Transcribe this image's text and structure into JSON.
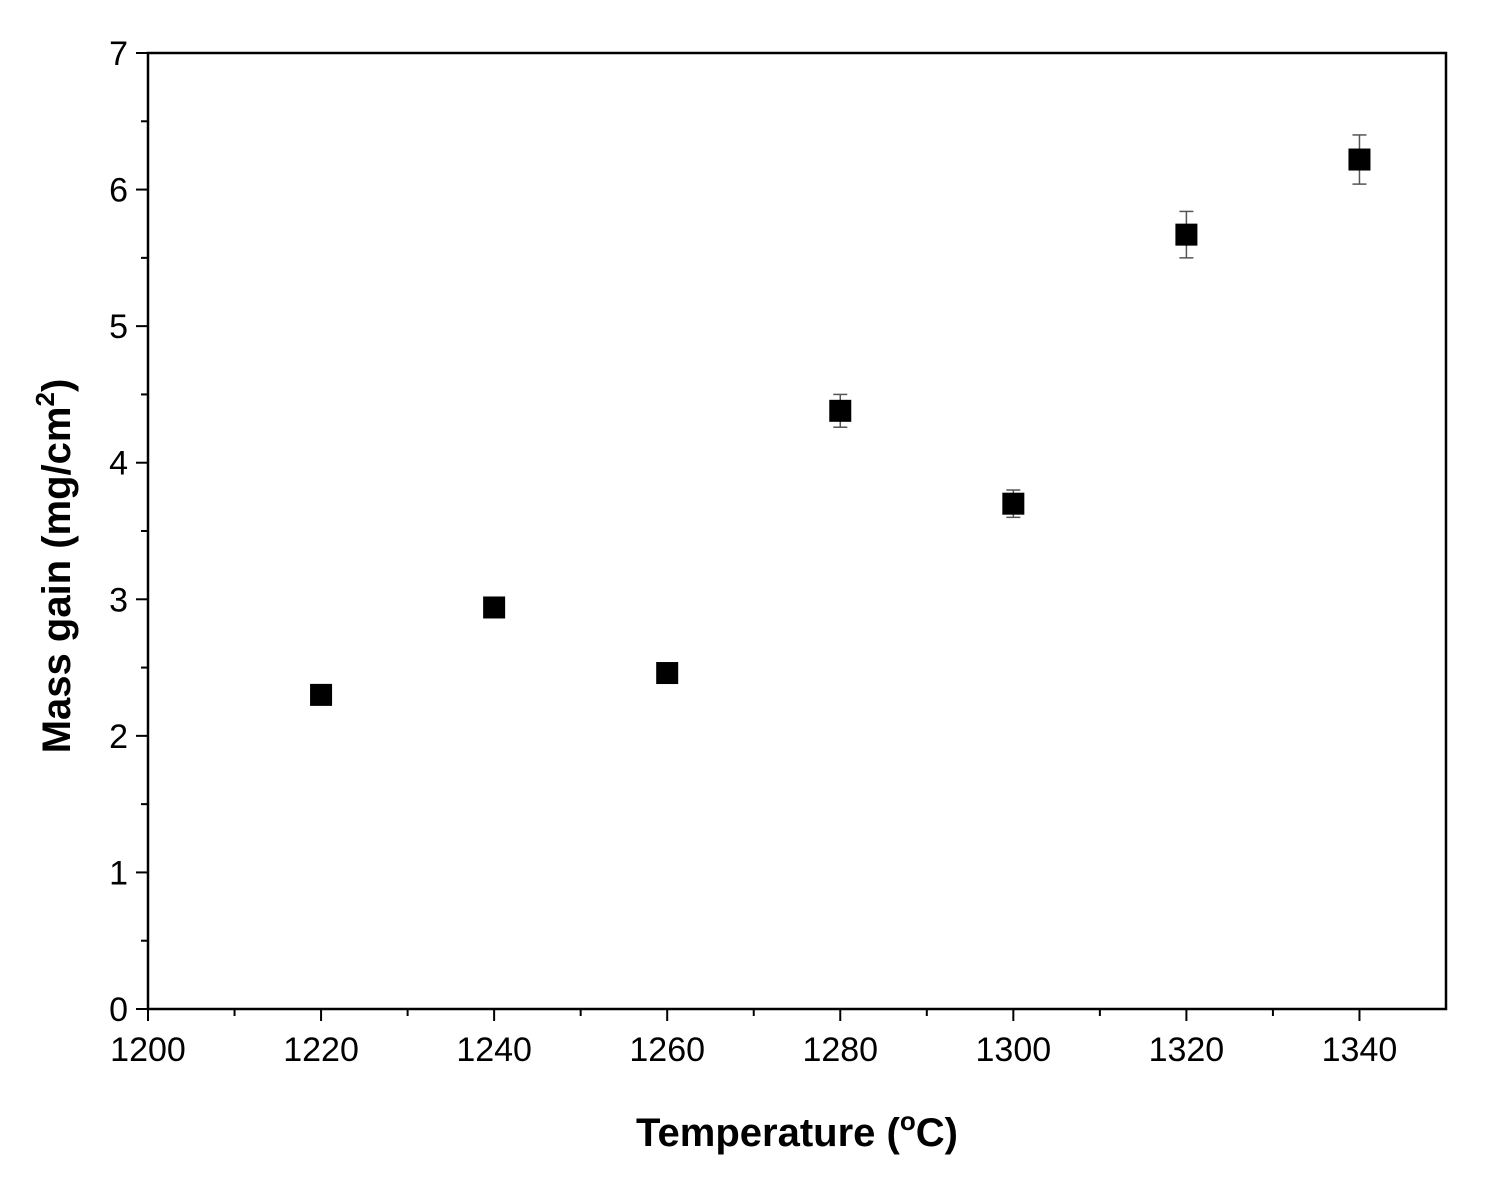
{
  "chart_data": {
    "type": "scatter",
    "xlabel": {
      "pre": "Temperature (",
      "sup": "o",
      "post": "C)"
    },
    "ylabel": {
      "pre": "Mass gain (mg/cm",
      "sup": "2",
      "post": ")"
    },
    "xlim": [
      1200,
      1350
    ],
    "ylim": [
      0,
      7
    ],
    "x_ticks": [
      1200,
      1220,
      1240,
      1260,
      1280,
      1300,
      1320,
      1340
    ],
    "x_tick_labels": [
      "1200",
      "1220",
      "1240",
      "1260",
      "1280",
      "1300",
      "1320",
      "1340"
    ],
    "x_minor_step": 10,
    "y_ticks": [
      0,
      1,
      2,
      3,
      4,
      5,
      6,
      7
    ],
    "y_tick_labels": [
      "0",
      "1",
      "2",
      "3",
      "4",
      "5",
      "6",
      "7"
    ],
    "y_minor_step": 0.5,
    "grid": false,
    "marker": "square",
    "marker_color": "#000000",
    "errorbar_color": "#555555",
    "series": [
      {
        "x": [
          1220,
          1240,
          1260,
          1280,
          1300,
          1320,
          1340
        ],
        "y": [
          2.3,
          2.94,
          2.46,
          4.38,
          3.7,
          5.67,
          6.22
        ],
        "yerr": [
          0.04,
          0.05,
          0.05,
          0.12,
          0.1,
          0.17,
          0.18
        ]
      }
    ]
  }
}
